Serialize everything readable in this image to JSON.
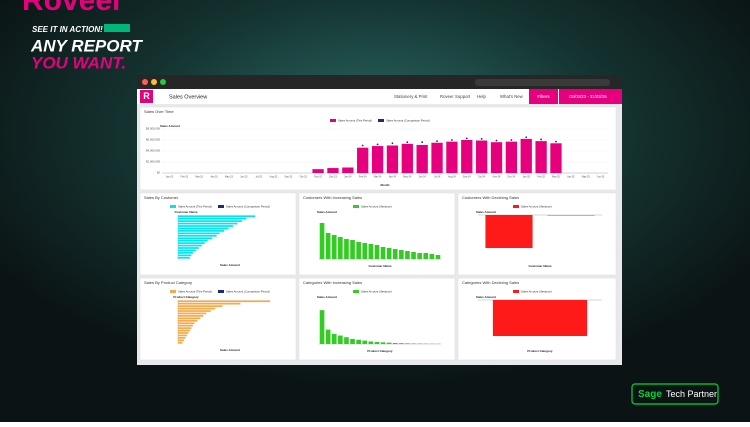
{
  "promo": {
    "brand": "Roveer",
    "tagline": "SEE IT IN ACTION!",
    "headline_1": "ANY REPORT",
    "headline_2": "YOU WANT.",
    "partner_brand": "Sage",
    "partner_label": "Tech Partner"
  },
  "app": {
    "logo": "R",
    "title": "Sales Overview",
    "nav": [
      "Stationery & Print",
      "Roveer Support",
      "Help",
      "What's New"
    ],
    "filters": "Filters",
    "date_range": "01/01/23 - 31/03/25"
  },
  "panels": [
    {
      "title": "Sales Over Time",
      "orientation": "vertical",
      "value_axis_label": "Sales Amount",
      "category_axis_label": "Month",
      "legend": [
        {
          "name": "Sales Amount (This Period)",
          "color": "#e6007e"
        },
        {
          "name": "Sales Amount (Comparison Period)",
          "color": "#1f2a7a"
        }
      ],
      "categories": [
        "Jan-23",
        "Feb-23",
        "Mar-23",
        "Apr-23",
        "May-23",
        "Jun-23",
        "Jul-23",
        "Aug-23",
        "Sep-23",
        "Oct-23",
        "Nov-23",
        "Dec-23",
        "Jan-24",
        "Feb-24",
        "Mar-24",
        "Apr-24",
        "May-24",
        "Jun-24",
        "Jul-24",
        "Aug-24",
        "Sep-24",
        "Oct-24",
        "Nov-24",
        "Dec-24",
        "Jan-25",
        "Feb-25",
        "Mar-25",
        "Apr-25",
        "May-25",
        "Jun-25"
      ],
      "values": [
        0,
        0,
        0,
        0,
        0,
        0,
        0,
        0,
        0,
        0,
        700000,
        900000,
        1000000,
        4600000,
        4900000,
        5000000,
        5300000,
        5100000,
        5500000,
        5700000,
        6000000,
        5900000,
        5600000,
        5700000,
        6200000,
        5800000,
        5400000,
        0,
        0,
        0
      ],
      "comparison": [
        null,
        null,
        null,
        null,
        null,
        null,
        null,
        null,
        null,
        null,
        null,
        null,
        null,
        5000000,
        5200000,
        5400000,
        5600000,
        5600000,
        5800000,
        6000000,
        6300000,
        6200000,
        5900000,
        6000000,
        6500000,
        6100000,
        5700000,
        null,
        null,
        null
      ],
      "lim": [
        0,
        8000000
      ],
      "ticks": [
        {
          "value": 0,
          "label": "$0"
        },
        {
          "value": 2000000,
          "label": "$2,000,000"
        },
        {
          "value": 4000000,
          "label": "$4,000,000"
        },
        {
          "value": 6000000,
          "label": "$6,000,000"
        },
        {
          "value": 8000000,
          "label": "$8,000,000"
        }
      ]
    },
    {
      "title": "Sales By Customer",
      "orientation": "horizontal",
      "value_axis_label": "Sales Amount",
      "category_axis_label": "Customer Name",
      "legend": [
        {
          "name": "Sales Amount (This Period)",
          "color": "#00e5f0"
        },
        {
          "name": "Sales Amount (Comparison Period)",
          "color": "#1f2a7a"
        }
      ],
      "values": [
        5200000,
        4600000,
        4300000,
        4000000,
        3700000,
        3400000,
        3100000,
        2800000,
        2600000,
        2300000,
        2000000,
        1800000,
        1600000,
        1400000,
        1200000,
        1000000,
        900000,
        800000
      ],
      "lim": [
        0,
        7000000
      ]
    },
    {
      "title": "Customers With Increasing Sales",
      "orientation": "vertical",
      "value_axis_label": "Sales Amount",
      "category_axis_label": "Customer Name",
      "legend": [
        {
          "name": "Sales Amount (Variance)",
          "color": "#33cc22"
        }
      ],
      "values": [
        1800000,
        1300000,
        1200000,
        1100000,
        1000000,
        950000,
        850000,
        800000,
        750000,
        700000,
        600000,
        550000,
        500000,
        450000,
        400000,
        350000,
        300000,
        300000,
        250000,
        200000
      ],
      "lim": [
        0,
        2200000
      ]
    },
    {
      "title": "Customers With Declining Sales",
      "orientation": "vertical",
      "value_axis_label": "Sales Amount",
      "category_axis_label": "Customer Name",
      "legend": [
        {
          "name": "Sales Amount (Variance)",
          "color": "#ff1a1a"
        }
      ],
      "values": [
        -1500000,
        -20000
      ],
      "lim": [
        -2000000,
        0
      ]
    },
    {
      "title": "Sales By Product Category",
      "orientation": "horizontal",
      "value_axis_label": "Sales Amount",
      "category_axis_label": "Product Category",
      "legend": [
        {
          "name": "Sales Amount (This Period)",
          "color": "#f5a94a"
        },
        {
          "name": "Sales Amount (Comparison Period)",
          "color": "#1f2a7a"
        }
      ],
      "values": [
        6200000,
        4200000,
        3000000,
        2500000,
        2200000,
        1900000,
        1700000,
        1500000,
        1300000,
        1100000,
        1000000,
        900000,
        800000,
        700000,
        600000,
        500000,
        400000,
        300000
      ],
      "lim": [
        0,
        7000000
      ]
    },
    {
      "title": "Categories With Increasing Sales",
      "orientation": "vertical",
      "value_axis_label": "Sales Amount",
      "category_axis_label": "Product Category",
      "legend": [
        {
          "name": "Sales Amount (Variance)",
          "color": "#33cc22"
        }
      ],
      "values": [
        2000000,
        850000,
        600000,
        500000,
        400000,
        300000,
        250000,
        200000,
        150000,
        120000,
        100000,
        80000,
        60000,
        50000,
        40000,
        30000,
        25000,
        20000,
        15000,
        10000
      ],
      "lim": [
        0,
        2600000
      ]
    },
    {
      "title": "Categories With Declining Sales",
      "orientation": "vertical",
      "value_axis_label": "Sales Amount",
      "category_axis_label": "Product Category",
      "legend": [
        {
          "name": "Sales Amount (Variance)",
          "color": "#ff1a1a"
        }
      ],
      "values": [
        -1800000
      ],
      "lim": [
        -2200000,
        0
      ]
    }
  ]
}
